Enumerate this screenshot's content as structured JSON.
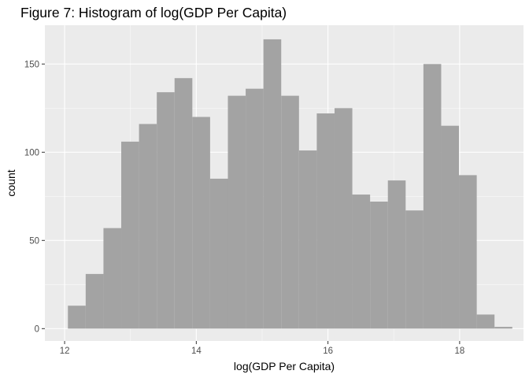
{
  "chart_data": {
    "type": "bar",
    "title": "Figure 7: Histogram of log(GDP Per Capita)",
    "xlabel": "log(GDP Per Capita)",
    "ylabel": "count",
    "xlim": [
      11.7,
      18.97
    ],
    "ylim": [
      -7,
      172
    ],
    "x_ticks": [
      12,
      14,
      16,
      18
    ],
    "x_tick_labels": [
      "12",
      "14",
      "16",
      "18"
    ],
    "y_ticks": [
      0,
      50,
      100,
      150
    ],
    "y_tick_labels": [
      "0",
      "50",
      "100",
      "150"
    ],
    "bins": {
      "start": 12.05,
      "width": 0.27,
      "counts": [
        13,
        31,
        57,
        106,
        116,
        134,
        142,
        120,
        85,
        132,
        136,
        164,
        132,
        101,
        122,
        125,
        76,
        72,
        84,
        67,
        150,
        115,
        87,
        8,
        1
      ]
    },
    "bar_color": "#a3a3a3",
    "panel_color": "#ebebeb",
    "grid": true
  }
}
